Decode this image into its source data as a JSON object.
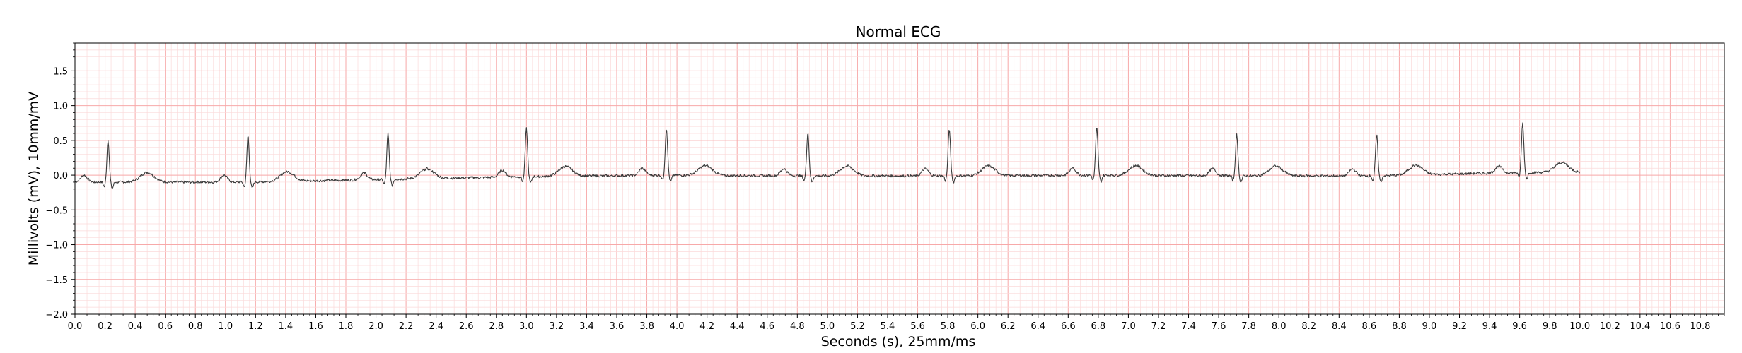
{
  "chart_data": {
    "type": "line",
    "title": "Normal ECG",
    "xlabel": "Seconds (s), 25mm/ms",
    "ylabel": "Millivolts (mV), 10mm/mV",
    "xlim": [
      0,
      10.96
    ],
    "ylim": [
      -2.0,
      1.9
    ],
    "x_ticks": [
      "0.0",
      "0.2",
      "0.4",
      "0.6",
      "0.8",
      "1.0",
      "1.2",
      "1.4",
      "1.6",
      "1.8",
      "2.0",
      "2.2",
      "2.4",
      "2.6",
      "2.8",
      "3.0",
      "3.2",
      "3.4",
      "3.6",
      "3.8",
      "4.0",
      "4.2",
      "4.4",
      "4.6",
      "4.8",
      "5.0",
      "5.2",
      "5.4",
      "5.6",
      "5.8",
      "6.0",
      "6.2",
      "6.4",
      "6.6",
      "6.8",
      "7.0",
      "7.2",
      "7.4",
      "7.6",
      "7.8",
      "8.0",
      "8.2",
      "8.4",
      "8.6",
      "8.8",
      "9.0",
      "9.2",
      "9.4",
      "9.6",
      "9.8",
      "10.0",
      "10.2",
      "10.4",
      "10.6",
      "10.8"
    ],
    "y_ticks": [
      "1.5",
      "1.0",
      "0.5",
      "0.0",
      "−0.5",
      "−1.0",
      "−1.5",
      "−2.0"
    ],
    "grid": "ECG paper grid: major every 0.2 s / 0.5 mV, minor every 0.04 s / 0.1 mV",
    "colors": {
      "line": "#3a3a3a",
      "grid_major": "#f7a9a9",
      "grid_minor": "#fbdada"
    },
    "series": [
      {
        "beats": [
          {
            "x": 0.22,
            "peak": 0.46,
            "baseline": -0.1
          },
          {
            "x": 1.15,
            "peak": 0.52,
            "baseline": -0.1
          },
          {
            "x": 2.08,
            "peak": 0.55,
            "baseline": -0.06
          },
          {
            "x": 3.0,
            "peak": 0.62,
            "baseline": -0.02
          },
          {
            "x": 3.93,
            "peak": 0.63,
            "baseline": 0.0
          },
          {
            "x": 4.87,
            "peak": 0.57,
            "baseline": -0.01
          },
          {
            "x": 5.81,
            "peak": 0.62,
            "baseline": -0.01
          },
          {
            "x": 6.79,
            "peak": 0.63,
            "baseline": 0.0
          },
          {
            "x": 7.72,
            "peak": 0.53,
            "baseline": -0.01
          },
          {
            "x": 8.65,
            "peak": 0.53,
            "baseline": -0.01
          },
          {
            "x": 9.62,
            "peak": 0.7,
            "baseline": 0.04
          }
        ],
        "x_end": 10.0
      }
    ]
  }
}
